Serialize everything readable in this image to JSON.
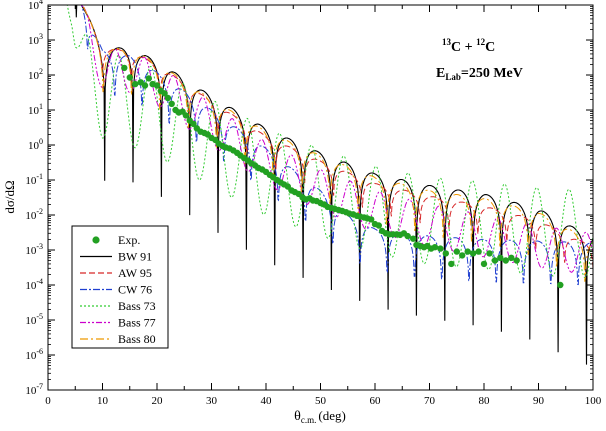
{
  "chart_data": {
    "type": "line",
    "x_scale": "linear",
    "y_scale": "log",
    "xlim": [
      0,
      100
    ],
    "ylim": [
      1e-07,
      10000.0
    ],
    "x_ticks": [
      0,
      10,
      20,
      30,
      40,
      50,
      60,
      70,
      80,
      90,
      100
    ],
    "y_tick_exponents": [
      -7,
      -6,
      -5,
      -4,
      -3,
      -2,
      -1,
      0,
      1,
      2,
      3,
      4
    ],
    "xlabel": {
      "main": "θ",
      "sub": "c.m.",
      "unit": "(deg)"
    },
    "ylabel": "dσ/dΩ",
    "annotation": {
      "reaction": {
        "mass_a": "13",
        "elem_a": "C",
        "plus": " + ",
        "mass_b": "12",
        "elem_b": "C"
      },
      "energy": {
        "sym": "E",
        "sub": "Lab",
        "value": "=250 MeV"
      }
    },
    "legend_position": "lower-left",
    "experimental": {
      "name": "Exp.",
      "color": "#22a022",
      "points": [
        [
          14,
          160
        ],
        [
          15,
          85
        ],
        [
          16,
          55
        ],
        [
          17,
          62
        ],
        [
          17.8,
          50
        ],
        [
          18.5,
          80
        ],
        [
          19.2,
          55
        ],
        [
          20,
          50
        ],
        [
          20.7,
          35
        ],
        [
          21.4,
          30
        ],
        [
          22,
          22
        ],
        [
          22.7,
          15
        ],
        [
          23.4,
          10
        ],
        [
          24,
          8.5
        ],
        [
          24.7,
          9
        ],
        [
          25.3,
          7
        ],
        [
          26,
          5
        ],
        [
          26.7,
          4
        ],
        [
          27.3,
          3
        ],
        [
          28,
          2.4
        ],
        [
          28.7,
          2.2
        ],
        [
          29.3,
          2
        ],
        [
          30,
          1.6
        ],
        [
          30.7,
          1.4
        ],
        [
          31.3,
          1.1
        ],
        [
          32,
          0.95
        ],
        [
          32.6,
          0.85
        ],
        [
          33.3,
          0.8
        ],
        [
          34,
          0.7
        ],
        [
          34.7,
          0.6
        ],
        [
          35.3,
          0.5
        ],
        [
          36,
          0.42
        ],
        [
          36.7,
          0.36
        ],
        [
          37.3,
          0.3
        ],
        [
          38,
          0.26
        ],
        [
          38.6,
          0.22
        ],
        [
          39.3,
          0.2
        ],
        [
          40,
          0.17
        ],
        [
          40.7,
          0.14
        ],
        [
          41.3,
          0.12
        ],
        [
          42,
          0.1
        ],
        [
          42.7,
          0.085
        ],
        [
          43.3,
          0.075
        ],
        [
          44,
          0.065
        ],
        [
          44.7,
          0.05
        ],
        [
          45.3,
          0.045
        ],
        [
          46,
          0.04
        ],
        [
          46.7,
          0.032
        ],
        [
          47.3,
          0.028
        ],
        [
          48,
          0.03
        ],
        [
          48.6,
          0.026
        ],
        [
          49.3,
          0.025
        ],
        [
          50,
          0.022
        ],
        [
          50.7,
          0.02
        ],
        [
          51.3,
          0.017
        ],
        [
          52,
          0.016
        ],
        [
          52.6,
          0.015
        ],
        [
          53.3,
          0.014
        ],
        [
          54,
          0.013
        ],
        [
          54.7,
          0.012
        ],
        [
          55.3,
          0.011
        ],
        [
          56,
          0.0105
        ],
        [
          56.7,
          0.0095
        ],
        [
          57.3,
          0.009
        ],
        [
          58,
          0.0085
        ],
        [
          58.6,
          0.008
        ],
        [
          59.3,
          0.0075
        ],
        [
          60,
          0.0055
        ],
        [
          60.7,
          0.005
        ],
        [
          61.3,
          0.0035
        ],
        [
          62,
          0.003
        ],
        [
          62.6,
          0.0028
        ],
        [
          63.3,
          0.0028
        ],
        [
          64,
          0.0028
        ],
        [
          64.6,
          0.0027
        ],
        [
          65.3,
          0.003
        ],
        [
          66,
          0.0025
        ],
        [
          67,
          0.0021
        ],
        [
          67.6,
          0.0014
        ],
        [
          68.3,
          0.0013
        ],
        [
          69,
          0.0012
        ],
        [
          69.6,
          0.0013
        ],
        [
          70.3,
          0.0011
        ],
        [
          71,
          0.0012
        ],
        [
          72,
          0.0011
        ],
        [
          73,
          0.0008
        ],
        [
          74,
          0.0004
        ],
        [
          75,
          0.0009
        ],
        [
          76,
          0.0007
        ],
        [
          77,
          0.0009
        ],
        [
          78,
          0.0008
        ],
        [
          79,
          0.0009
        ],
        [
          80,
          0.0004
        ],
        [
          81,
          0.0008
        ],
        [
          82,
          0.0005
        ],
        [
          83,
          0.0006
        ],
        [
          84,
          0.0005
        ],
        [
          85,
          0.0006
        ],
        [
          86,
          0.0005
        ],
        [
          94,
          0.0001
        ]
      ]
    },
    "series": [
      {
        "name": "BW 91",
        "color": "#000000",
        "dash": "",
        "width": 1.1,
        "period": 5.2,
        "phase": 0.0,
        "depth": 3.8,
        "mode": "spiky",
        "envelope": [
          [
            5,
            30000.0
          ],
          [
            10,
            600
          ],
          [
            15,
            600
          ],
          [
            20,
            250
          ],
          [
            30,
            25
          ],
          [
            40,
            3
          ],
          [
            50,
            0.6
          ],
          [
            60,
            0.15
          ],
          [
            70,
            0.07
          ],
          [
            80,
            0.04
          ],
          [
            90,
            0.015
          ],
          [
            97,
            0.004
          ],
          [
            100,
            0.003
          ]
        ]
      },
      {
        "name": "AW 95",
        "color": "#d62728",
        "dash": "6,3",
        "width": 1.0,
        "period": 5.3,
        "phase": 0.12,
        "depth": 2.0,
        "mode": "spiky",
        "envelope": [
          [
            5,
            30000.0
          ],
          [
            10,
            600
          ],
          [
            15,
            500
          ],
          [
            20,
            200
          ],
          [
            30,
            18
          ],
          [
            40,
            1.8
          ],
          [
            50,
            0.35
          ],
          [
            60,
            0.08
          ],
          [
            70,
            0.035
          ],
          [
            80,
            0.018
          ],
          [
            90,
            0.007
          ],
          [
            97,
            0.002
          ],
          [
            100,
            0.0015
          ]
        ]
      },
      {
        "name": "CW 76",
        "color": "#1f3fd0",
        "dash": "7,2,2,2",
        "width": 1.0,
        "period": 5.0,
        "phase": 0.55,
        "depth": 3.2,
        "mode": "spiky",
        "envelope": [
          [
            5,
            30000.0
          ],
          [
            10,
            500
          ],
          [
            15,
            350
          ],
          [
            20,
            120
          ],
          [
            30,
            10
          ],
          [
            40,
            0.8
          ],
          [
            50,
            0.05
          ],
          [
            55,
            0.01
          ],
          [
            60,
            0.004
          ],
          [
            70,
            0.0025
          ],
          [
            80,
            0.002
          ],
          [
            90,
            0.0018
          ],
          [
            100,
            0.0016
          ]
        ]
      },
      {
        "name": "Bass 73",
        "color": "#33cc33",
        "dash": "2,2",
        "width": 1.0,
        "period": 5.9,
        "phase": 0.3,
        "depth": 2.5,
        "mode": "smooth",
        "envelope": [
          [
            3.5,
            30000.0
          ],
          [
            5,
            3000
          ],
          [
            10,
            500
          ],
          [
            15,
            300
          ],
          [
            20,
            150
          ],
          [
            30,
            20
          ],
          [
            40,
            3
          ],
          [
            50,
            0.8
          ],
          [
            60,
            0.25
          ],
          [
            70,
            0.12
          ],
          [
            80,
            0.09
          ],
          [
            90,
            0.06
          ],
          [
            100,
            0.05
          ]
        ]
      },
      {
        "name": "Bass 77",
        "color": "#cc00cc",
        "dash": "6,2,2,2,2,2",
        "width": 1.0,
        "period": 5.4,
        "phase": 0.22,
        "depth": 1.2,
        "mode": "smooth",
        "envelope": [
          [
            5,
            30000.0
          ],
          [
            10,
            600
          ],
          [
            15,
            500
          ],
          [
            20,
            220
          ],
          [
            30,
            15
          ],
          [
            40,
            1.2
          ],
          [
            50,
            0.2
          ],
          [
            60,
            0.05
          ],
          [
            70,
            0.02
          ],
          [
            80,
            0.01
          ],
          [
            90,
            0.005
          ],
          [
            100,
            0.003
          ]
        ]
      },
      {
        "name": "Bass 80",
        "color": "#ee9900",
        "dash": "8,3,2,3",
        "width": 1.0,
        "period": 5.2,
        "phase": 0.05,
        "depth": 3.2,
        "mode": "spiky",
        "envelope": [
          [
            5,
            30000.0
          ],
          [
            10,
            600
          ],
          [
            15,
            550
          ],
          [
            20,
            230
          ],
          [
            30,
            20
          ],
          [
            40,
            2.5
          ],
          [
            50,
            0.5
          ],
          [
            60,
            0.12
          ],
          [
            70,
            0.05
          ],
          [
            80,
            0.03
          ],
          [
            90,
            0.012
          ],
          [
            97,
            0.003
          ],
          [
            100,
            0.002
          ]
        ]
      }
    ]
  }
}
